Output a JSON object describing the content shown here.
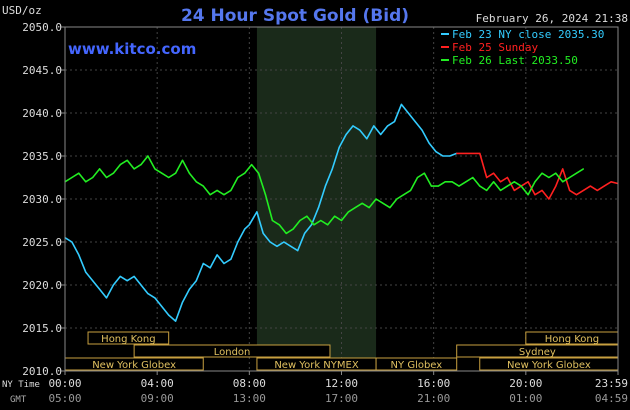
{
  "header": {
    "title": "24 Hour Spot Gold (Bid)",
    "timestamp": "February 26, 2024 21:38",
    "unit_label": "USD/oz",
    "watermark": "www.kitco.com"
  },
  "legend": [
    {
      "label": "Feb 23 NY close 2035.30",
      "color": "#33ccff"
    },
    {
      "label": "Feb 25 Sunday",
      "color": "#ff2020"
    },
    {
      "label": "Feb 26 Last 2033.50",
      "color": "#22ee22"
    }
  ],
  "axis_row_labels": {
    "ny": "NY Time",
    "gmt": "GMT"
  },
  "markets": [
    {
      "label": "Hong Kong",
      "start": 1.0,
      "end": 4.5,
      "row": 0
    },
    {
      "label": "Hong Kong",
      "start": 20.0,
      "end": 24.0,
      "row": 0
    },
    {
      "label": "London",
      "start": 3.0,
      "end": 11.5,
      "row": 1
    },
    {
      "label": "Sydney",
      "start": 17.0,
      "end": 24.0,
      "row": 1
    },
    {
      "label": "New York Globex",
      "start": 0.0,
      "end": 6.0,
      "row": 2
    },
    {
      "label": "New York NYMEX",
      "start": 8.33,
      "end": 13.5,
      "row": 2
    },
    {
      "label": "NY Globex",
      "start": 13.5,
      "end": 17.0,
      "row": 2
    },
    {
      "label": "New York Globex",
      "start": 18.0,
      "end": 24.0,
      "row": 2
    }
  ],
  "chart_data": {
    "type": "line",
    "title": "24 Hour Spot Gold (Bid)",
    "ylabel": "USD/oz",
    "ylim": [
      2010,
      2050
    ],
    "yticks": [
      "2050.0",
      "2045.0",
      "2040.0",
      "2035.0",
      "2030.0",
      "2025.0",
      "2020.0",
      "2015.0",
      "2010.0"
    ],
    "xlim": [
      0,
      24
    ],
    "xticks_ny": [
      "00:00",
      "04:00",
      "08:00",
      "12:00",
      "16:00",
      "20:00",
      "23:59"
    ],
    "xticks_gmt": [
      "05:00",
      "09:00",
      "13:00",
      "17:00",
      "21:00",
      "01:00",
      "04:59"
    ],
    "highlight_range": [
      8.33,
      13.5
    ],
    "grid": true,
    "series": [
      {
        "name": "Feb 23 NY close 2035.30",
        "color": "#33ccff",
        "x": [
          0,
          0.3,
          0.6,
          0.9,
          1.2,
          1.5,
          1.8,
          2.1,
          2.4,
          2.7,
          3.0,
          3.3,
          3.6,
          3.9,
          4.2,
          4.5,
          4.8,
          5.1,
          5.4,
          5.7,
          6.0,
          6.3,
          6.6,
          6.9,
          7.2,
          7.5,
          7.8,
          8.0,
          8.33,
          8.6,
          8.9,
          9.2,
          9.5,
          9.8,
          10.1,
          10.4,
          10.7,
          11.0,
          11.3,
          11.6,
          11.9,
          12.2,
          12.5,
          12.8,
          13.1,
          13.4,
          13.7,
          14.0,
          14.3,
          14.6,
          14.9,
          15.2,
          15.5,
          15.8,
          16.1,
          16.4,
          16.7,
          17.0
        ],
        "y": [
          2025.5,
          2025.0,
          2023.5,
          2021.5,
          2020.5,
          2019.5,
          2018.5,
          2020.0,
          2021.0,
          2020.5,
          2021.0,
          2020.0,
          2019.0,
          2018.5,
          2017.5,
          2016.5,
          2015.8,
          2018.0,
          2019.5,
          2020.5,
          2022.5,
          2022.0,
          2023.5,
          2022.5,
          2023.0,
          2025.0,
          2026.5,
          2027.0,
          2028.5,
          2026.0,
          2025.0,
          2024.5,
          2025.0,
          2024.5,
          2024.0,
          2026.0,
          2027.0,
          2029.0,
          2031.5,
          2033.5,
          2036.0,
          2037.5,
          2038.5,
          2038.0,
          2037.0,
          2038.5,
          2037.5,
          2038.5,
          2039.0,
          2041.0,
          2040.0,
          2039.0,
          2038.0,
          2036.5,
          2035.5,
          2035.0,
          2035.0,
          2035.3
        ]
      },
      {
        "name": "Feb 25 Sunday",
        "color": "#ff2020",
        "x": [
          17.0,
          18.0,
          18.3,
          18.6,
          18.9,
          19.2,
          19.5,
          19.8,
          20.1,
          20.4,
          20.7,
          21.0,
          21.3,
          21.6,
          21.9,
          22.2,
          22.5,
          22.8,
          23.1,
          23.4,
          23.7,
          23.99
        ],
        "y": [
          2035.3,
          2035.3,
          2032.5,
          2033.0,
          2032.0,
          2032.5,
          2031.0,
          2031.5,
          2032.0,
          2030.5,
          2031.0,
          2030.0,
          2031.5,
          2033.5,
          2031.0,
          2030.5,
          2031.0,
          2031.5,
          2031.0,
          2031.5,
          2032.0,
          2031.8
        ]
      },
      {
        "name": "Feb 26 Last 2033.50",
        "color": "#22ee22",
        "x": [
          0,
          0.3,
          0.6,
          0.9,
          1.2,
          1.5,
          1.8,
          2.1,
          2.4,
          2.7,
          3.0,
          3.3,
          3.6,
          3.9,
          4.2,
          4.5,
          4.8,
          5.1,
          5.4,
          5.7,
          6.0,
          6.3,
          6.6,
          6.9,
          7.2,
          7.5,
          7.8,
          8.1,
          8.4,
          8.7,
          9.0,
          9.3,
          9.6,
          9.9,
          10.2,
          10.5,
          10.8,
          11.1,
          11.4,
          11.7,
          12.0,
          12.3,
          12.6,
          12.9,
          13.2,
          13.5,
          13.8,
          14.1,
          14.4,
          14.7,
          15.0,
          15.3,
          15.6,
          15.9,
          16.2,
          16.5,
          16.8,
          17.1,
          17.4,
          17.7,
          18.0,
          18.3,
          18.6,
          18.9,
          19.2,
          19.5,
          19.8,
          20.1,
          20.4,
          20.7,
          21.0,
          21.3,
          21.6,
          21.9,
          22.2,
          22.5
        ],
        "y": [
          2032.0,
          2032.5,
          2033.0,
          2032.0,
          2032.5,
          2033.5,
          2032.5,
          2033.0,
          2034.0,
          2034.5,
          2033.5,
          2034.0,
          2035.0,
          2033.5,
          2033.0,
          2032.5,
          2033.0,
          2034.5,
          2033.0,
          2032.0,
          2031.5,
          2030.5,
          2031.0,
          2030.5,
          2031.0,
          2032.5,
          2033.0,
          2034.0,
          2033.0,
          2030.5,
          2027.5,
          2027.0,
          2026.0,
          2026.5,
          2027.5,
          2028.0,
          2027.0,
          2027.5,
          2027.0,
          2028.0,
          2027.5,
          2028.5,
          2029.0,
          2029.5,
          2029.0,
          2030.0,
          2029.5,
          2029.0,
          2030.0,
          2030.5,
          2031.0,
          2032.5,
          2033.0,
          2031.5,
          2031.5,
          2032.0,
          2032.0,
          2031.5,
          2032.0,
          2032.5,
          2031.5,
          2031.0,
          2032.0,
          2031.0,
          2031.5,
          2032.0,
          2031.5,
          2030.5,
          2032.0,
          2033.0,
          2032.5,
          2033.0,
          2032.0,
          2032.5,
          2033.0,
          2033.5
        ]
      }
    ]
  }
}
